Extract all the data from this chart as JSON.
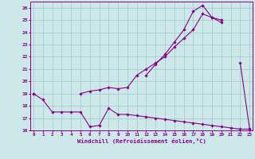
{
  "xlabel": "Windchill (Refroidissement éolien,°C)",
  "bg_color": "#cce8e8",
  "line_color": "#880088",
  "grid_color": "#aacccc",
  "x_values": [
    0,
    1,
    2,
    3,
    4,
    5,
    6,
    7,
    8,
    9,
    10,
    11,
    12,
    13,
    14,
    15,
    16,
    17,
    18,
    19,
    20,
    21,
    22,
    23
  ],
  "line1": [
    19.0,
    18.5,
    17.5,
    17.5,
    17.5,
    17.5,
    16.3,
    16.4,
    17.8,
    17.3,
    17.3,
    17.2,
    17.1,
    17.0,
    16.9,
    16.8,
    16.7,
    16.6,
    16.5,
    16.4,
    16.3,
    16.2,
    16.1,
    16.1
  ],
  "line2": [
    19.0,
    null,
    null,
    null,
    null,
    19.0,
    19.2,
    19.3,
    19.5,
    19.4,
    19.5,
    20.5,
    21.0,
    21.5,
    22.0,
    22.8,
    23.5,
    24.2,
    25.5,
    25.2,
    24.8,
    null,
    null,
    null
  ],
  "line3": [
    null,
    null,
    null,
    null,
    null,
    null,
    null,
    null,
    null,
    null,
    null,
    null,
    20.5,
    21.4,
    22.2,
    23.2,
    24.2,
    25.7,
    26.2,
    25.2,
    25.0,
    null,
    21.5,
    16.1
  ],
  "ylim": [
    16,
    26.5
  ],
  "xlim": [
    -0.3,
    23.3
  ],
  "yticks": [
    16,
    17,
    18,
    19,
    20,
    21,
    22,
    23,
    24,
    25,
    26
  ],
  "xticks": [
    0,
    1,
    2,
    3,
    4,
    5,
    6,
    7,
    8,
    9,
    10,
    11,
    12,
    13,
    14,
    15,
    16,
    17,
    18,
    19,
    20,
    21,
    22,
    23
  ]
}
